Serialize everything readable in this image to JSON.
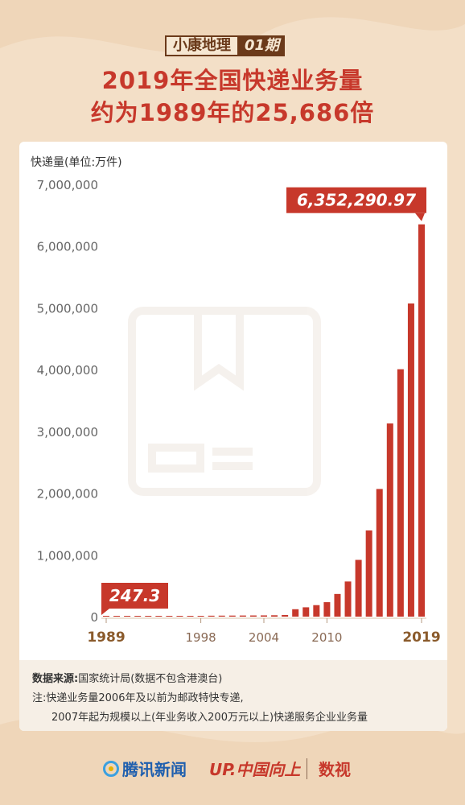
{
  "header": {
    "series_name": "小康地理",
    "issue": "01期",
    "title_line1": "2019年全国快递业务量",
    "title_line2": "约为1989年的25,686倍"
  },
  "colors": {
    "bar": "#c7382b",
    "accent": "#c7382b",
    "brown": "#8a5a2b",
    "background": "#f3dfc7"
  },
  "chart_data": {
    "type": "bar",
    "ylabel": "快递量(单位:万件)",
    "ylim": [
      0,
      7000000
    ],
    "yticks": [
      0,
      1000000,
      2000000,
      3000000,
      4000000,
      5000000,
      6000000,
      7000000
    ],
    "ytick_labels": [
      "0",
      "1,000,000",
      "2,000,000",
      "3,000,000",
      "4,000,000",
      "5,000,000",
      "6,000,000",
      "7,000,000"
    ],
    "grid": false,
    "categories": [
      1989,
      1990,
      1991,
      1992,
      1993,
      1994,
      1995,
      1996,
      1997,
      1998,
      1999,
      2000,
      2001,
      2002,
      2003,
      2004,
      2005,
      2006,
      2007,
      2008,
      2009,
      2010,
      2011,
      2012,
      2013,
      2014,
      2015,
      2016,
      2017,
      2018,
      2019
    ],
    "x_tick_labels": [
      {
        "year": 1989,
        "label": "1989",
        "emph": true
      },
      {
        "year": 1998,
        "label": "1998",
        "emph": false
      },
      {
        "year": 2004,
        "label": "2004",
        "emph": false
      },
      {
        "year": 2010,
        "label": "2010",
        "emph": false
      },
      {
        "year": 2019,
        "label": "2019",
        "emph": true
      }
    ],
    "values": [
      247.3,
      1000,
      2000,
      3000,
      4000,
      6000,
      8000,
      10000,
      12000,
      13000,
      15000,
      16000,
      17000,
      18000,
      19000,
      20000,
      22000,
      26000,
      120000,
      151000,
      186000,
      234000,
      367000,
      569000,
      919000,
      1396000,
      2067000,
      3128000,
      4006000,
      5071000,
      6352290.97
    ],
    "annotations": [
      {
        "year": 2019,
        "text": "6,352,290.97"
      },
      {
        "year": 1989,
        "text": "247.3"
      }
    ]
  },
  "notes": {
    "source_label": "数据来源:",
    "source_text": "国家统计局(数据不包含港澳台)",
    "note_line1": "注:快递业务量2006年及以前为邮政特快专递,",
    "note_line2": "2007年起为规模以上(年业务收入200万元以上)快递服务企业业务量"
  },
  "footer": {
    "brand1": "腾讯新闻",
    "brand2": "UP.中国向上",
    "brand3": "数视"
  }
}
